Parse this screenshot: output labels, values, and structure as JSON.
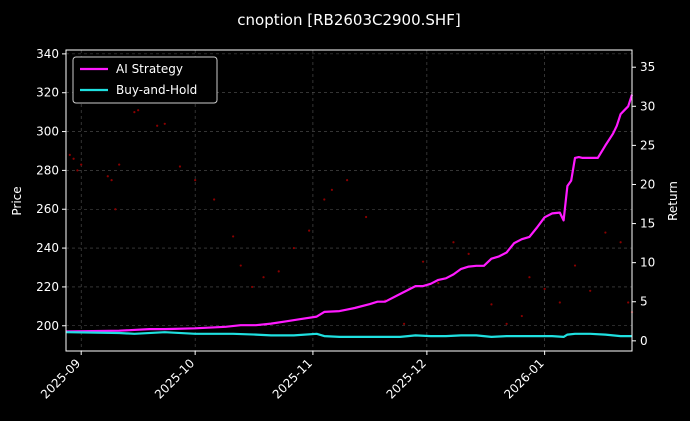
{
  "chart_data": {
    "type": "line",
    "title": "cnoption [RB2603C2900.SHF]",
    "ylabel_left": "Price",
    "ylabel_right": "Return",
    "x_ticks": [
      "2025-09",
      "2025-10",
      "2025-11",
      "2025-12",
      "2026-01"
    ],
    "x_tick_days": [
      0,
      30,
      61,
      91,
      122
    ],
    "x_range_days": [
      -4,
      145
    ],
    "y_left_ticks": [
      200,
      220,
      240,
      260,
      280,
      300,
      320,
      340
    ],
    "y_left_range": [
      187,
      342
    ],
    "y_right_ticks": [
      0,
      5,
      10,
      15,
      20,
      25,
      30,
      35
    ],
    "y_right_range": [
      -1.3,
      37.2
    ],
    "grid": true,
    "legend_position": "top-left",
    "colors": {
      "background": "#000000",
      "ai_strategy": "#ff1aff",
      "buy_and_hold": "#1fe0e0",
      "price_points": "#8b0000",
      "grid": "#555555"
    },
    "series": [
      {
        "name": "AI Strategy",
        "axis": "right",
        "x": [
          -4,
          10,
          18,
          22,
          30,
          38,
          42,
          46,
          50,
          54,
          58,
          62,
          64,
          68,
          70,
          72,
          76,
          78,
          80,
          84,
          88,
          90,
          92,
          94,
          96,
          98,
          100,
          102,
          104,
          106,
          108,
          110,
          112,
          114,
          116,
          118,
          120,
          122,
          124,
          126,
          127,
          128,
          129,
          130,
          131,
          132,
          133,
          134,
          136,
          138,
          140,
          141,
          142,
          143,
          144,
          145
        ],
        "y": [
          1.2,
          1.3,
          1.5,
          1.5,
          1.6,
          1.8,
          2.0,
          2.0,
          2.2,
          2.5,
          2.8,
          3.1,
          3.7,
          3.8,
          4.0,
          4.2,
          4.7,
          5.0,
          5.0,
          6.0,
          7.0,
          7.0,
          7.3,
          7.8,
          8.0,
          8.5,
          9.2,
          9.5,
          9.6,
          9.6,
          10.5,
          10.8,
          11.3,
          12.5,
          13.0,
          13.3,
          14.5,
          15.8,
          16.3,
          16.4,
          15.4,
          19.8,
          20.5,
          23.4,
          23.5,
          23.4,
          23.4,
          23.4,
          23.4,
          25.0,
          26.5,
          27.5,
          29.0,
          29.5,
          30.0,
          31.5
        ]
      },
      {
        "name": "Buy-and-Hold",
        "axis": "right",
        "x": [
          -4,
          10,
          14,
          22,
          30,
          40,
          46,
          50,
          56,
          62,
          64,
          68,
          72,
          76,
          80,
          84,
          88,
          92,
          96,
          100,
          104,
          108,
          112,
          116,
          120,
          124,
          127,
          128,
          130,
          134,
          138,
          142,
          145
        ],
        "y": [
          1.1,
          1.0,
          0.9,
          1.1,
          0.9,
          0.9,
          0.8,
          0.7,
          0.7,
          0.9,
          0.6,
          0.5,
          0.5,
          0.5,
          0.5,
          0.5,
          0.7,
          0.6,
          0.6,
          0.7,
          0.7,
          0.5,
          0.6,
          0.6,
          0.6,
          0.6,
          0.5,
          0.8,
          0.9,
          0.9,
          0.8,
          0.6,
          0.6
        ]
      }
    ],
    "price_points": {
      "axis": "left",
      "x": [
        -3,
        -2,
        -1,
        0,
        7,
        8,
        9,
        10,
        14,
        15,
        20,
        22,
        26,
        30,
        35,
        40,
        42,
        45,
        48,
        52,
        56,
        60,
        64,
        66,
        70,
        75,
        80,
        85,
        90,
        94,
        98,
        102,
        108,
        112,
        116,
        118,
        122,
        126,
        130,
        134,
        138,
        142,
        144,
        145
      ],
      "y": [
        288,
        286,
        280,
        283,
        277,
        275,
        260,
        283,
        310,
        311,
        303,
        304,
        282,
        275,
        265,
        246,
        231,
        220,
        225,
        228,
        240,
        249,
        265,
        270,
        275,
        256,
        213,
        201,
        233,
        222,
        243,
        237,
        211,
        201,
        205,
        225,
        219,
        212,
        231,
        218,
        248,
        243,
        212,
        207
      ]
    }
  }
}
